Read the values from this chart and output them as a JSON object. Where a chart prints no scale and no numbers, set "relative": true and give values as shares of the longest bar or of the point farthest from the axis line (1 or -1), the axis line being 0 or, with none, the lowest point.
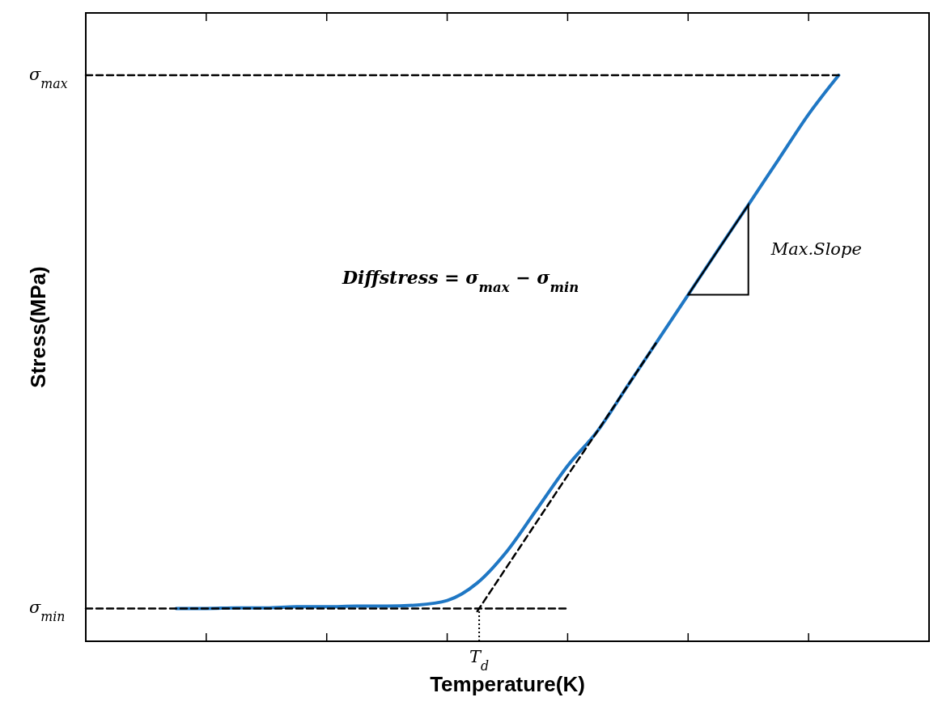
{
  "chart_data": {
    "type": "line",
    "relative": true,
    "xlabel": "Temperature(K)",
    "ylabel": "Stress(MPa)",
    "categories": [
      null,
      null,
      null,
      null,
      null,
      null,
      null,
      null,
      null,
      null,
      null,
      null,
      null,
      null,
      null,
      null,
      null,
      null,
      null,
      null,
      null,
      null,
      null,
      null,
      null,
      null,
      null,
      null,
      null
    ],
    "series": [
      {
        "color": "#000000",
        "line_style": "dashed",
        "values": [
          1,
          1,
          1,
          1,
          1,
          1,
          1,
          1,
          1,
          1,
          1,
          1,
          1,
          1,
          1,
          1,
          1,
          1,
          1,
          1,
          1,
          1,
          1,
          1,
          1,
          1,
          null,
          null,
          null
        ]
      },
      {
        "color": "#000000",
        "line_style": "dashed",
        "values": [
          0.058,
          0.058,
          0.058,
          0.058,
          0.058,
          0.058,
          0.058,
          0.058,
          0.058,
          0.058,
          0.058,
          0.058,
          0.058,
          0.058,
          0.058,
          0.058,
          0.058,
          null,
          null,
          null,
          null,
          null,
          null,
          null,
          null,
          null,
          null,
          null,
          null
        ]
      },
      {
        "color": "#000000",
        "line_style": "dashed",
        "values": [
          null,
          null,
          null,
          null,
          null,
          null,
          null,
          null,
          null,
          null,
          null,
          null,
          null,
          0.053,
          0.133,
          0.213,
          0.293,
          0.372,
          0.452,
          0.532,
          null,
          null,
          null,
          null,
          null,
          null,
          null,
          null,
          null
        ]
      },
      {
        "color": "#1f77c4",
        "line_style": "solid",
        "values": [
          null,
          null,
          null,
          0.058,
          0.058,
          0.059,
          0.059,
          0.061,
          0.061,
          0.062,
          0.062,
          0.064,
          0.072,
          0.103,
          0.16,
          0.235,
          0.31,
          0.372,
          0.452,
          0.532,
          0.612,
          0.692,
          0.771,
          0.851,
          0.931,
          1,
          null,
          null,
          null
        ]
      }
    ],
    "annotations": [
      "σ$_{max}$",
      "σ$_{min}$",
      "T$_{d}$",
      "Diffstress = σ$_{max}$ − σ$_{min}$",
      "Max.Slope"
    ]
  }
}
